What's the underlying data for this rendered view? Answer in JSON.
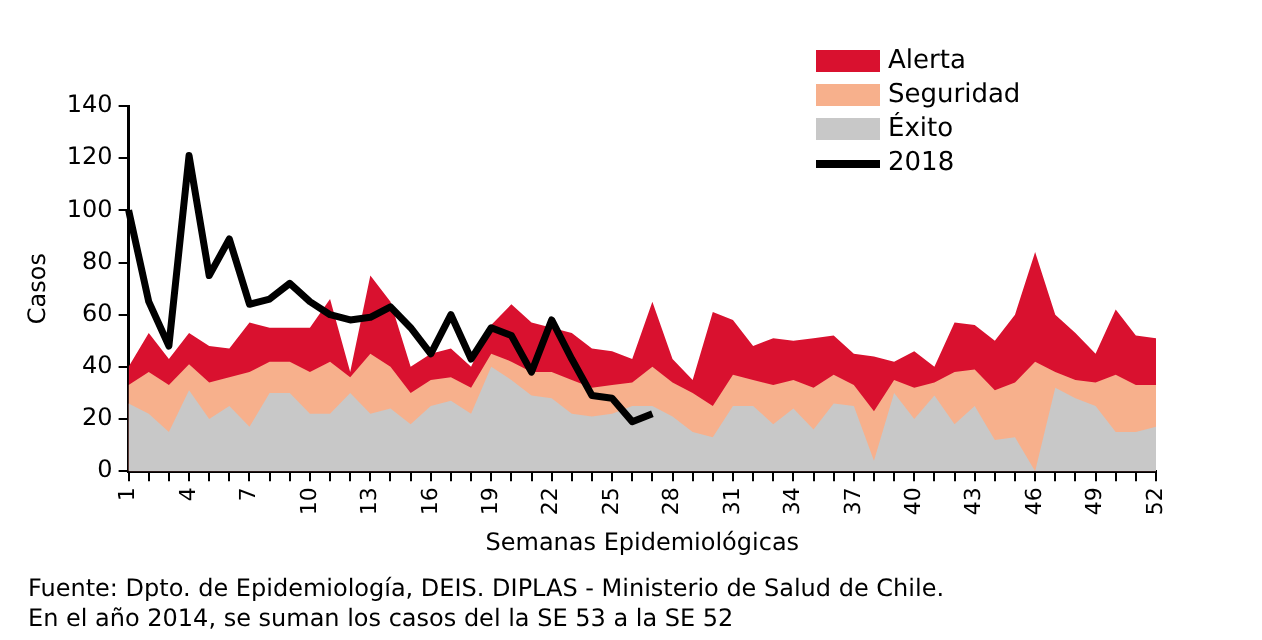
{
  "chart_data": {
    "type": "area",
    "categories": [
      "1",
      null,
      null,
      "4",
      null,
      null,
      "7",
      null,
      null,
      "10",
      null,
      null,
      "13",
      null,
      null,
      "16",
      null,
      null,
      "19",
      null,
      null,
      "22",
      null,
      null,
      "25",
      null,
      null,
      "28",
      null,
      null,
      "31",
      null,
      null,
      "34",
      null,
      null,
      "37",
      null,
      null,
      "40",
      null,
      null,
      "43",
      null,
      null,
      "46",
      null,
      null,
      "49",
      null,
      null,
      "52"
    ],
    "xlabel": "Semanas Epidemiológicas",
    "ylabel": "Casos",
    "ylim": [
      0,
      140
    ],
    "yticks": [
      0,
      20,
      40,
      60,
      80,
      100,
      120,
      140
    ],
    "grid": false,
    "legend": "top right",
    "series": [
      {
        "name": "Alerta",
        "color": "#d9112f",
        "values": [
          40,
          53,
          43,
          53,
          48,
          47,
          57,
          55,
          55,
          55,
          66,
          38,
          75,
          65,
          40,
          45,
          47,
          40,
          56,
          64,
          57,
          55,
          53,
          47,
          46,
          43,
          65,
          43,
          35,
          61,
          58,
          48,
          51,
          50,
          51,
          52,
          45,
          44,
          42,
          46,
          40,
          57,
          56,
          50,
          60,
          84,
          60,
          53,
          45,
          62,
          52,
          51
        ]
      },
      {
        "name": "Seguridad",
        "color": "#f7b08c",
        "values": [
          33,
          38,
          33,
          41,
          34,
          36,
          38,
          42,
          42,
          38,
          42,
          36,
          45,
          40,
          30,
          35,
          36,
          32,
          45,
          42,
          38,
          38,
          35,
          32,
          33,
          34,
          40,
          34,
          30,
          25,
          37,
          35,
          33,
          35,
          32,
          37,
          33,
          23,
          35,
          32,
          34,
          38,
          39,
          31,
          34,
          42,
          38,
          35,
          34,
          37,
          33,
          33
        ]
      },
      {
        "name": "Éxito",
        "color": "#c8c8c8",
        "values": [
          26,
          22,
          15,
          31,
          20,
          25,
          17,
          30,
          30,
          22,
          22,
          30,
          22,
          24,
          18,
          25,
          27,
          22,
          40,
          35,
          29,
          28,
          22,
          21,
          22,
          25,
          25,
          21,
          15,
          13,
          25,
          25,
          18,
          24,
          16,
          26,
          25,
          4,
          30,
          20,
          29,
          18,
          25,
          12,
          13,
          0,
          32,
          28,
          25,
          15,
          15,
          17
        ]
      },
      {
        "name": "2018",
        "type": "line",
        "color": "#000000",
        "values": [
          100,
          65,
          48,
          121,
          75,
          89,
          64,
          66,
          72,
          65,
          60,
          58,
          59,
          63,
          55,
          45,
          60,
          43,
          55,
          52,
          38,
          58,
          43,
          29,
          28,
          19,
          22,
          null,
          null,
          null,
          null,
          null,
          null,
          null,
          null,
          null,
          null,
          null,
          null,
          null,
          null,
          null,
          null,
          null,
          null,
          null,
          null,
          null,
          null,
          null,
          null,
          null
        ]
      }
    ],
    "annotations": [
      "Fuente: Dpto. de Epidemiología, DEIS. DIPLAS - Ministerio de Salud de Chile.",
      "En el año 2014, se suman los casos del la SE 53 a la SE 52"
    ]
  }
}
